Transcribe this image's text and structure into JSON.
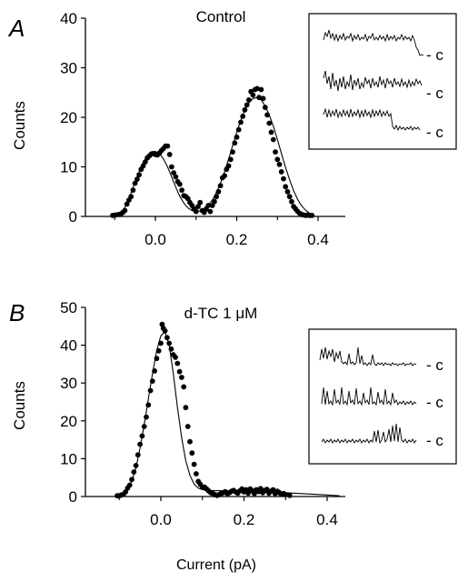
{
  "xlabel": "Current (pA)",
  "chart_data": [
    {
      "type": "scatter",
      "panel_label": "A",
      "title": "Control",
      "ylabel": "Counts",
      "xlim": [
        -0.12,
        0.45
      ],
      "ylim": [
        0,
        40
      ],
      "xticks": [
        "0.0",
        "0.2",
        "0.4"
      ],
      "xtick_values": [
        0.0,
        0.2,
        0.4
      ],
      "yticks": [
        "0",
        "10",
        "20",
        "30",
        "40"
      ],
      "ytick_values": [
        0,
        10,
        20,
        30,
        40
      ],
      "grid": false,
      "points": [
        [
          -0.105,
          0.2
        ],
        [
          -0.098,
          0.3
        ],
        [
          -0.09,
          0.4
        ],
        [
          -0.085,
          0.5
        ],
        [
          -0.08,
          0.8
        ],
        [
          -0.075,
          1.2
        ],
        [
          -0.07,
          2.5
        ],
        [
          -0.065,
          3.3
        ],
        [
          -0.06,
          4.0
        ],
        [
          -0.055,
          5.3
        ],
        [
          -0.05,
          6.7
        ],
        [
          -0.045,
          7.5
        ],
        [
          -0.04,
          8.4
        ],
        [
          -0.035,
          9.5
        ],
        [
          -0.03,
          10.2
        ],
        [
          -0.025,
          11.0
        ],
        [
          -0.02,
          11.8
        ],
        [
          -0.015,
          12.2
        ],
        [
          -0.01,
          12.6
        ],
        [
          -0.005,
          12.7
        ],
        [
          0.0,
          12.5
        ],
        [
          0.005,
          12.4
        ],
        [
          0.01,
          12.8
        ],
        [
          0.015,
          13.3
        ],
        [
          0.02,
          13.7
        ],
        [
          0.025,
          14.2
        ],
        [
          0.03,
          14.2
        ],
        [
          0.035,
          12.5
        ],
        [
          0.04,
          10.0
        ],
        [
          0.045,
          8.8
        ],
        [
          0.05,
          8.0
        ],
        [
          0.055,
          7.0
        ],
        [
          0.06,
          6.5
        ],
        [
          0.065,
          5.3
        ],
        [
          0.07,
          4.2
        ],
        [
          0.075,
          4.0
        ],
        [
          0.08,
          3.6
        ],
        [
          0.085,
          2.8
        ],
        [
          0.09,
          2.2
        ],
        [
          0.095,
          1.5
        ],
        [
          0.1,
          1.0
        ],
        [
          0.105,
          2.0
        ],
        [
          0.11,
          2.8
        ],
        [
          0.115,
          1.2
        ],
        [
          0.12,
          0.8
        ],
        [
          0.125,
          1.5
        ],
        [
          0.13,
          2.2
        ],
        [
          0.135,
          1.0
        ],
        [
          0.14,
          2.2
        ],
        [
          0.145,
          3.0
        ],
        [
          0.15,
          4.0
        ],
        [
          0.155,
          5.0
        ],
        [
          0.16,
          6.2
        ],
        [
          0.165,
          7.8
        ],
        [
          0.17,
          8.2
        ],
        [
          0.175,
          9.5
        ],
        [
          0.18,
          10.2
        ],
        [
          0.185,
          11.5
        ],
        [
          0.19,
          13.0
        ],
        [
          0.195,
          14.8
        ],
        [
          0.2,
          16.0
        ],
        [
          0.205,
          17.5
        ],
        [
          0.21,
          19.0
        ],
        [
          0.215,
          20.2
        ],
        [
          0.22,
          21.5
        ],
        [
          0.225,
          22.5
        ],
        [
          0.23,
          23.5
        ],
        [
          0.235,
          25.2
        ],
        [
          0.24,
          24.5
        ],
        [
          0.245,
          25.6
        ],
        [
          0.25,
          25.8
        ],
        [
          0.255,
          24.0
        ],
        [
          0.26,
          25.6
        ],
        [
          0.265,
          23.8
        ],
        [
          0.27,
          22.0
        ],
        [
          0.275,
          20.5
        ],
        [
          0.28,
          18.8
        ],
        [
          0.285,
          17.0
        ],
        [
          0.29,
          15.5
        ],
        [
          0.295,
          13.0
        ],
        [
          0.3,
          11.5
        ],
        [
          0.305,
          10.5
        ],
        [
          0.31,
          9.0
        ],
        [
          0.315,
          7.6
        ],
        [
          0.32,
          6.0
        ],
        [
          0.325,
          5.0
        ],
        [
          0.33,
          4.0
        ],
        [
          0.335,
          3.0
        ],
        [
          0.34,
          2.0
        ],
        [
          0.345,
          1.5
        ],
        [
          0.35,
          1.0
        ],
        [
          0.355,
          0.6
        ],
        [
          0.36,
          0.4
        ],
        [
          0.365,
          0.3
        ],
        [
          0.37,
          0.2
        ],
        [
          0.375,
          0.3
        ],
        [
          0.38,
          0.2
        ],
        [
          0.385,
          0.2
        ]
      ],
      "fit": [
        [
          -0.1,
          0.1
        ],
        [
          -0.09,
          0.4
        ],
        [
          -0.08,
          1.1
        ],
        [
          -0.07,
          2.6
        ],
        [
          -0.06,
          4.7
        ],
        [
          -0.05,
          7.0
        ],
        [
          -0.04,
          9.0
        ],
        [
          -0.03,
          10.9
        ],
        [
          -0.02,
          12.2
        ],
        [
          -0.01,
          13.0
        ],
        [
          0.0,
          13.1
        ],
        [
          0.01,
          12.7
        ],
        [
          0.02,
          11.6
        ],
        [
          0.03,
          10.0
        ],
        [
          0.04,
          8.0
        ],
        [
          0.05,
          5.9
        ],
        [
          0.06,
          4.1
        ],
        [
          0.07,
          2.7
        ],
        [
          0.08,
          1.7
        ],
        [
          0.09,
          1.2
        ],
        [
          0.1,
          1.0
        ],
        [
          0.11,
          1.1
        ],
        [
          0.12,
          1.5
        ],
        [
          0.13,
          2.2
        ],
        [
          0.14,
          3.3
        ],
        [
          0.15,
          4.8
        ],
        [
          0.16,
          6.7
        ],
        [
          0.17,
          9.0
        ],
        [
          0.18,
          11.6
        ],
        [
          0.19,
          14.3
        ],
        [
          0.2,
          17.0
        ],
        [
          0.21,
          19.4
        ],
        [
          0.22,
          21.4
        ],
        [
          0.23,
          22.9
        ],
        [
          0.24,
          23.8
        ],
        [
          0.25,
          24.0
        ],
        [
          0.26,
          23.5
        ],
        [
          0.27,
          22.3
        ],
        [
          0.28,
          20.5
        ],
        [
          0.29,
          18.2
        ],
        [
          0.3,
          15.5
        ],
        [
          0.31,
          12.7
        ],
        [
          0.32,
          9.9
        ],
        [
          0.33,
          7.4
        ],
        [
          0.34,
          5.2
        ],
        [
          0.35,
          3.4
        ],
        [
          0.36,
          2.1
        ],
        [
          0.37,
          1.2
        ],
        [
          0.38,
          0.6
        ],
        [
          0.39,
          0.3
        ]
      ],
      "inset": {
        "labels": [
          "- c",
          "- c",
          "- c"
        ]
      }
    },
    {
      "type": "scatter",
      "panel_label": "B",
      "title": "d-TC 1 μM",
      "ylabel": "Counts",
      "xlim": [
        -0.12,
        0.45
      ],
      "ylim": [
        0,
        50
      ],
      "xticks": [
        "0.0",
        "0.2",
        "0.4"
      ],
      "xtick_values": [
        0.0,
        0.2,
        0.4
      ],
      "yticks": [
        "0",
        "10",
        "20",
        "30",
        "40",
        "50"
      ],
      "ytick_values": [
        0,
        10,
        20,
        30,
        40,
        50
      ],
      "grid": false,
      "points": [
        [
          -0.105,
          0.2
        ],
        [
          -0.1,
          0.2
        ],
        [
          -0.095,
          0.4
        ],
        [
          -0.09,
          0.6
        ],
        [
          -0.085,
          1.2
        ],
        [
          -0.08,
          2.2
        ],
        [
          -0.075,
          3.0
        ],
        [
          -0.07,
          4.5
        ],
        [
          -0.065,
          6.5
        ],
        [
          -0.06,
          8.2
        ],
        [
          -0.055,
          11.0
        ],
        [
          -0.05,
          13.8
        ],
        [
          -0.045,
          16.0
        ],
        [
          -0.04,
          18.5
        ],
        [
          -0.035,
          21.0
        ],
        [
          -0.03,
          24.2
        ],
        [
          -0.025,
          28.0
        ],
        [
          -0.02,
          30.5
        ],
        [
          -0.015,
          33.2
        ],
        [
          -0.01,
          36.5
        ],
        [
          -0.005,
          38.5
        ],
        [
          0.0,
          40.5
        ],
        [
          0.003,
          45.5
        ],
        [
          0.006,
          44.5
        ],
        [
          0.01,
          43.8
        ],
        [
          0.015,
          42.0
        ],
        [
          0.02,
          40.5
        ],
        [
          0.025,
          39.0
        ],
        [
          0.03,
          37.5
        ],
        [
          0.035,
          36.8
        ],
        [
          0.04,
          35.2
        ],
        [
          0.045,
          33.0
        ],
        [
          0.05,
          31.5
        ],
        [
          0.055,
          29.0
        ],
        [
          0.06,
          23.5
        ],
        [
          0.065,
          18.5
        ],
        [
          0.07,
          14.5
        ],
        [
          0.075,
          11.5
        ],
        [
          0.08,
          8.5
        ],
        [
          0.085,
          6.0
        ],
        [
          0.09,
          4.0
        ],
        [
          0.095,
          3.2
        ],
        [
          0.1,
          2.5
        ],
        [
          0.105,
          2.5
        ],
        [
          0.11,
          2.0
        ],
        [
          0.115,
          1.5
        ],
        [
          0.12,
          1.0
        ],
        [
          0.125,
          0.8
        ],
        [
          0.13,
          0.5
        ],
        [
          0.135,
          0.3
        ],
        [
          0.14,
          0.5
        ],
        [
          0.145,
          0.8
        ],
        [
          0.15,
          1.0
        ],
        [
          0.155,
          1.3
        ],
        [
          0.16,
          0.8
        ],
        [
          0.165,
          1.0
        ],
        [
          0.17,
          1.4
        ],
        [
          0.175,
          1.6
        ],
        [
          0.18,
          1.2
        ],
        [
          0.185,
          0.9
        ],
        [
          0.19,
          1.5
        ],
        [
          0.195,
          2.0
        ],
        [
          0.2,
          1.2
        ],
        [
          0.205,
          1.8
        ],
        [
          0.21,
          0.9
        ],
        [
          0.215,
          2.0
        ],
        [
          0.22,
          1.5
        ],
        [
          0.225,
          0.8
        ],
        [
          0.23,
          1.8
        ],
        [
          0.235,
          1.3
        ],
        [
          0.24,
          2.1
        ],
        [
          0.245,
          1.0
        ],
        [
          0.25,
          1.6
        ],
        [
          0.255,
          1.9
        ],
        [
          0.26,
          0.9
        ],
        [
          0.265,
          1.4
        ],
        [
          0.27,
          1.8
        ],
        [
          0.275,
          0.8
        ],
        [
          0.28,
          1.4
        ],
        [
          0.285,
          1.0
        ],
        [
          0.29,
          0.6
        ],
        [
          0.295,
          0.8
        ],
        [
          0.3,
          0.5
        ],
        [
          0.31,
          0.3
        ]
      ],
      "fit": [
        [
          -0.1,
          0.3
        ],
        [
          -0.09,
          0.7
        ],
        [
          -0.08,
          1.8
        ],
        [
          -0.07,
          4.0
        ],
        [
          -0.06,
          7.6
        ],
        [
          -0.05,
          12.8
        ],
        [
          -0.04,
          19.0
        ],
        [
          -0.03,
          25.9
        ],
        [
          -0.02,
          32.5
        ],
        [
          -0.01,
          38.5
        ],
        [
          0.0,
          42.5
        ],
        [
          0.01,
          43.5
        ],
        [
          0.02,
          40.0
        ],
        [
          0.03,
          32.5
        ],
        [
          0.04,
          23.5
        ],
        [
          0.05,
          15.5
        ],
        [
          0.06,
          9.5
        ],
        [
          0.07,
          5.6
        ],
        [
          0.08,
          3.3
        ],
        [
          0.09,
          2.2
        ],
        [
          0.1,
          1.8
        ],
        [
          0.12,
          1.6
        ],
        [
          0.15,
          1.5
        ],
        [
          0.2,
          1.4
        ],
        [
          0.25,
          1.2
        ],
        [
          0.3,
          1.0
        ],
        [
          0.35,
          0.7
        ],
        [
          0.4,
          0.4
        ],
        [
          0.43,
          0.2
        ]
      ],
      "inset": {
        "labels": [
          "- c",
          "- c",
          "- c"
        ]
      }
    }
  ]
}
